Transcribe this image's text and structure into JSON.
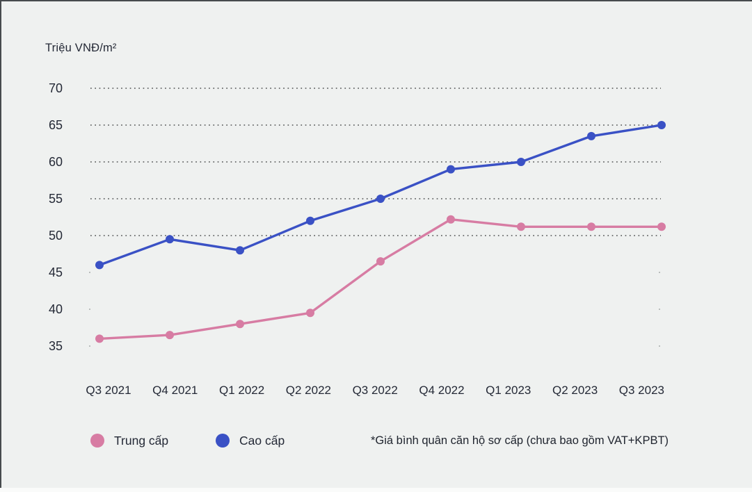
{
  "unit_label": "Triệu VNĐ/m²",
  "footnote": "*Giá bình quân căn hộ sơ cấp (chưa bao gồm VAT+KPBT)",
  "legend": {
    "items": [
      {
        "label": "Trung cấp",
        "color": "#d77ca3"
      },
      {
        "label": "Cao cấp",
        "color": "#3a51c5"
      }
    ]
  },
  "colors": {
    "background": "#eff1f0",
    "frame_border": "#474b4d",
    "gridline": "#4d4f4f",
    "text": "#242936",
    "series_trung_cap": "#d77ca3",
    "series_cao_cap": "#3a51c5"
  },
  "chart_data": {
    "type": "line",
    "title": "",
    "ylabel": "Triệu VNĐ/m²",
    "xlabel": "",
    "categories": [
      "Q3 2021",
      "Q4 2021",
      "Q1 2022",
      "Q2 2022",
      "Q3 2022",
      "Q4 2022",
      "Q1 2023",
      "Q2 2023",
      "Q3 2023"
    ],
    "series": [
      {
        "name": "Trung cấp",
        "color": "#d77ca3",
        "values": [
          36,
          36.5,
          38,
          39.5,
          46.5,
          52.2,
          51.2,
          51.2,
          51.2
        ]
      },
      {
        "name": "Cao cấp",
        "color": "#3a51c5",
        "values": [
          46,
          49.5,
          48,
          52,
          55,
          59,
          60,
          63.5,
          65
        ]
      }
    ],
    "y_ticks": [
      70,
      65,
      60,
      55,
      50,
      45,
      40,
      35
    ],
    "gridline_values": [
      70,
      65,
      60,
      55,
      50
    ],
    "tick_only_values": [
      45,
      40,
      35
    ],
    "ylim": [
      33,
      72
    ],
    "grid": "dotted-horizontal",
    "legend_position": "bottom-left",
    "footnote": "*Giá bình quân căn hộ sơ cấp (chưa bao gồm VAT+KPBT)"
  }
}
